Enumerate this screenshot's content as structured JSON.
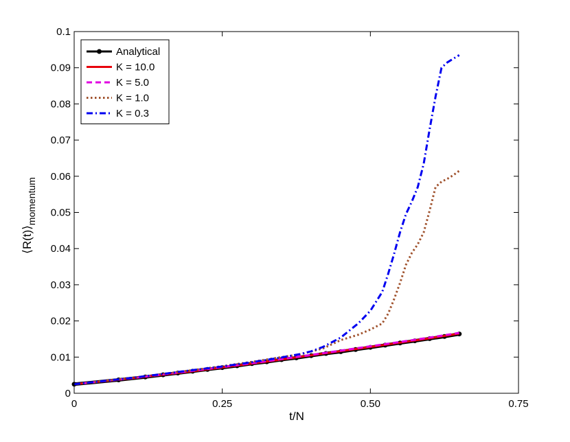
{
  "chart_data": {
    "type": "line",
    "xlabel": "t/N",
    "ylabel_main": "⟨R(t)⟩",
    "ylabel_sub": "momentum",
    "xlim": [
      0,
      0.75
    ],
    "ylim": [
      0,
      0.1
    ],
    "xticks": [
      {
        "value": 0,
        "label": "0"
      },
      {
        "value": 0.25,
        "label": "0.25"
      },
      {
        "value": 0.5,
        "label": "0.50"
      },
      {
        "value": 0.75,
        "label": "0.75"
      }
    ],
    "yticks": [
      {
        "value": 0,
        "label": "0"
      },
      {
        "value": 0.01,
        "label": "0.01"
      },
      {
        "value": 0.02,
        "label": "0.02"
      },
      {
        "value": 0.03,
        "label": "0.03"
      },
      {
        "value": 0.04,
        "label": "0.04"
      },
      {
        "value": 0.05,
        "label": "0.05"
      },
      {
        "value": 0.06,
        "label": "0.06"
      },
      {
        "value": 0.07,
        "label": "0.07"
      },
      {
        "value": 0.08,
        "label": "0.08"
      },
      {
        "value": 0.09,
        "label": "0.09"
      },
      {
        "value": 0.1,
        "label": "0.1"
      }
    ],
    "grid": false,
    "legend_position": "top-left",
    "series": [
      {
        "name": "Analytical",
        "color": "#000000",
        "style": "solid-markers",
        "x": [
          0,
          0.075,
          0.12,
          0.15,
          0.175,
          0.2,
          0.225,
          0.25,
          0.275,
          0.3,
          0.325,
          0.35,
          0.375,
          0.4,
          0.425,
          0.45,
          0.475,
          0.5,
          0.525,
          0.55,
          0.575,
          0.6,
          0.625,
          0.65
        ],
        "y": [
          0.0025,
          0.0037,
          0.0045,
          0.0051,
          0.0056,
          0.0061,
          0.0066,
          0.0071,
          0.0076,
          0.0082,
          0.0087,
          0.0093,
          0.0098,
          0.0104,
          0.011,
          0.0115,
          0.0121,
          0.0127,
          0.0133,
          0.0139,
          0.0145,
          0.0151,
          0.0157,
          0.0164
        ]
      },
      {
        "name": "K = 10.0",
        "color": "#e8000b",
        "style": "solid",
        "x": [
          0,
          0.1,
          0.2,
          0.3,
          0.4,
          0.5,
          0.55,
          0.6,
          0.65
        ],
        "y": [
          0.0025,
          0.0042,
          0.0061,
          0.0082,
          0.0105,
          0.0128,
          0.014,
          0.0152,
          0.0165
        ]
      },
      {
        "name": "K = 5.0",
        "color": "#e000e0",
        "style": "dashed",
        "x": [
          0,
          0.1,
          0.2,
          0.3,
          0.4,
          0.5,
          0.55,
          0.6,
          0.65
        ],
        "y": [
          0.0025,
          0.0042,
          0.0062,
          0.0083,
          0.0106,
          0.013,
          0.0142,
          0.0154,
          0.0167
        ]
      },
      {
        "name": "K = 1.0",
        "color": "#a0522d",
        "style": "dotted",
        "x": [
          0,
          0.1,
          0.2,
          0.25,
          0.3,
          0.35,
          0.38,
          0.42,
          0.45,
          0.48,
          0.5,
          0.52,
          0.53,
          0.54,
          0.55,
          0.56,
          0.57,
          0.58,
          0.59,
          0.6,
          0.61,
          0.62,
          0.63,
          0.64,
          0.65
        ],
        "y": [
          0.0025,
          0.0043,
          0.0064,
          0.0075,
          0.0087,
          0.01,
          0.0107,
          0.0124,
          0.0147,
          0.0162,
          0.0176,
          0.0193,
          0.022,
          0.026,
          0.0305,
          0.0355,
          0.0388,
          0.0412,
          0.0445,
          0.0505,
          0.057,
          0.0585,
          0.0593,
          0.0603,
          0.0615
        ]
      },
      {
        "name": "K = 0.3",
        "color": "#0000f0",
        "style": "dashdot",
        "x": [
          0,
          0.1,
          0.2,
          0.25,
          0.3,
          0.35,
          0.38,
          0.4,
          0.42,
          0.45,
          0.48,
          0.5,
          0.52,
          0.53,
          0.54,
          0.55,
          0.56,
          0.57,
          0.58,
          0.59,
          0.6,
          0.61,
          0.62,
          0.63,
          0.64,
          0.65
        ],
        "y": [
          0.0025,
          0.0043,
          0.0064,
          0.0074,
          0.0086,
          0.0099,
          0.0108,
          0.0116,
          0.0128,
          0.0154,
          0.0194,
          0.0228,
          0.028,
          0.033,
          0.0385,
          0.0445,
          0.0495,
          0.053,
          0.057,
          0.0635,
          0.073,
          0.082,
          0.09,
          0.0915,
          0.0925,
          0.0935
        ]
      }
    ]
  }
}
